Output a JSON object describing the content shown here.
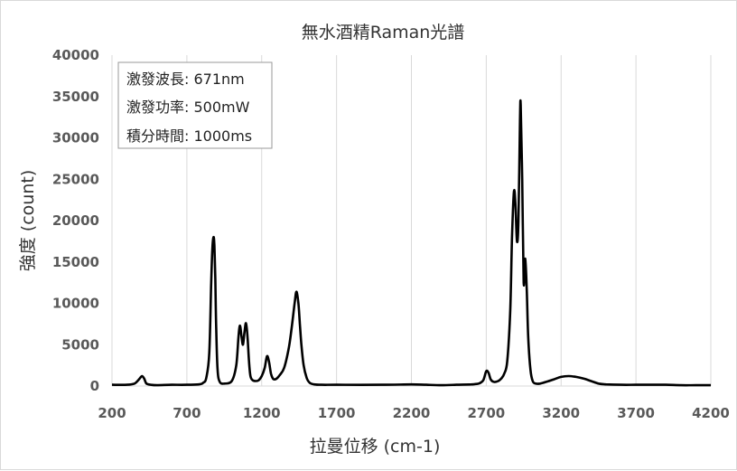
{
  "chart_data": {
    "type": "line",
    "title": "無水酒精Raman光譜",
    "xlabel": "拉曼位移 (cm-1)",
    "ylabel": "強度 (count)",
    "xlim": [
      200,
      4200
    ],
    "ylim": [
      0,
      40000
    ],
    "xticks": [
      "200",
      "700",
      "1200",
      "1700",
      "2200",
      "2700",
      "3200",
      "3700",
      "4200"
    ],
    "yticks": [
      "0",
      "5000",
      "10000",
      "15000",
      "20000",
      "25000",
      "30000",
      "35000",
      "40000"
    ],
    "grid": "vertical",
    "annotation": [
      "激發波長: 671nm",
      "激發功率: 500mW",
      "積分時間: 1000ms"
    ],
    "annotation_position": "top-left",
    "line_color": "#000000",
    "series": [
      {
        "x": [
          200,
          300,
          350,
          380,
          400,
          415,
          430,
          460,
          500,
          600,
          700,
          780,
          810,
          830,
          850,
          862,
          870,
          878,
          884,
          890,
          896,
          905,
          920,
          950,
          1000,
          1030,
          1045,
          1055,
          1065,
          1075,
          1085,
          1095,
          1105,
          1115,
          1125,
          1140,
          1160,
          1180,
          1200,
          1220,
          1235,
          1248,
          1262,
          1275,
          1285,
          1300,
          1320,
          1350,
          1380,
          1400,
          1420,
          1432,
          1445,
          1455,
          1465,
          1480,
          1500,
          1520,
          1550,
          1600,
          1700,
          2000,
          2200,
          2300,
          2400,
          2500,
          2600,
          2650,
          2680,
          2700,
          2715,
          2730,
          2750,
          2780,
          2800,
          2820,
          2840,
          2860,
          2872,
          2885,
          2895,
          2905,
          2915,
          2925,
          2930,
          2940,
          2950,
          2960,
          2970,
          2980,
          2995,
          3010,
          3030,
          3060,
          3100,
          3150,
          3200,
          3250,
          3300,
          3350,
          3400,
          3450,
          3500,
          3600,
          3700,
          3800,
          3900,
          4000,
          4100,
          4200
        ],
        "y": [
          150,
          150,
          300,
          800,
          1200,
          900,
          300,
          150,
          100,
          150,
          150,
          200,
          400,
          1000,
          4000,
          12000,
          16500,
          18000,
          17000,
          13000,
          7000,
          2000,
          500,
          300,
          600,
          2500,
          6000,
          7300,
          6000,
          5000,
          6500,
          7600,
          6000,
          3000,
          1200,
          700,
          600,
          700,
          1200,
          2200,
          3600,
          3000,
          1500,
          900,
          800,
          900,
          1300,
          2200,
          4500,
          7000,
          10000,
          11400,
          10000,
          7500,
          5000,
          2500,
          1000,
          400,
          200,
          150,
          150,
          150,
          200,
          150,
          100,
          150,
          200,
          300,
          700,
          1800,
          1600,
          800,
          500,
          600,
          900,
          1500,
          3000,
          9000,
          18000,
          23500,
          22000,
          17500,
          20000,
          32000,
          34000,
          25000,
          12500,
          15400,
          12000,
          6000,
          2000,
          600,
          300,
          300,
          500,
          800,
          1100,
          1200,
          1100,
          900,
          600,
          300,
          200,
          150,
          150,
          150,
          150,
          100,
          100,
          100
        ]
      }
    ]
  }
}
